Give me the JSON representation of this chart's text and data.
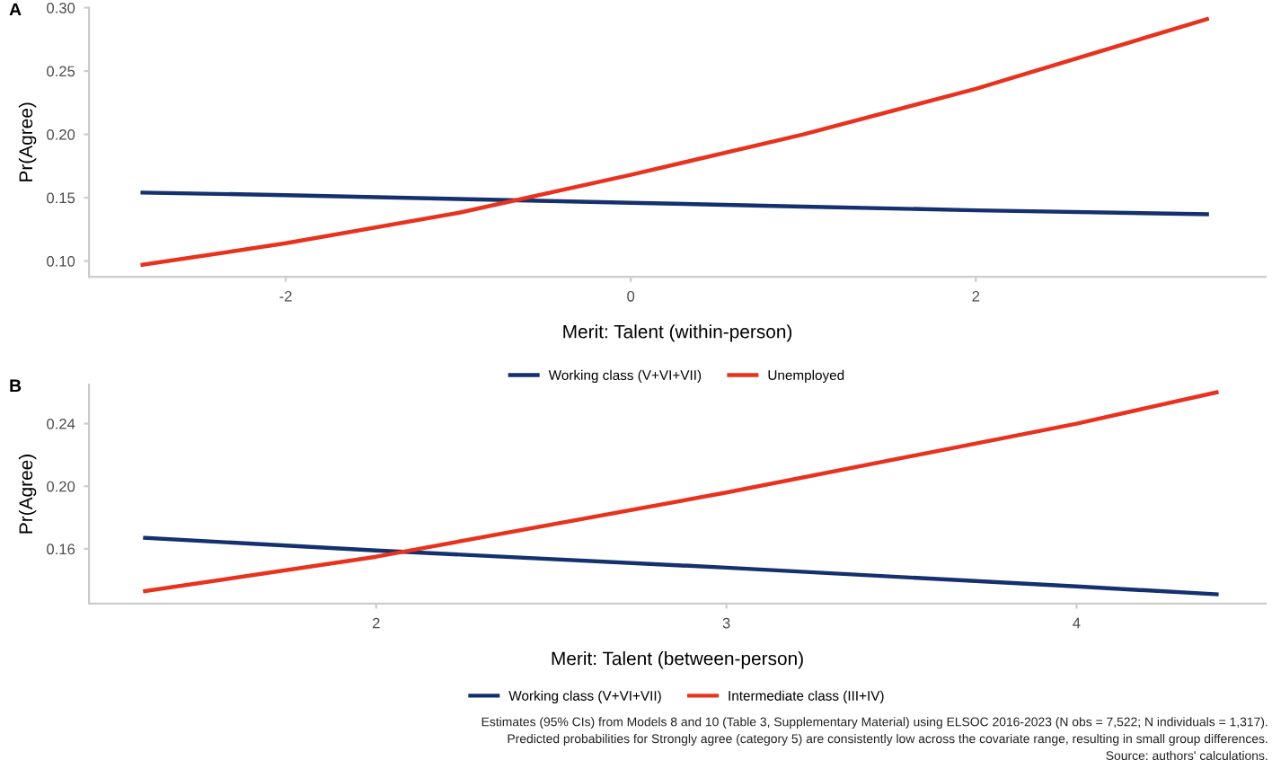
{
  "chart_data": [
    {
      "type": "line",
      "title": "A",
      "xlabel": "Merit: Talent (within-person)",
      "ylabel": "Pr(Agree)",
      "xlim": [
        -3.14,
        3.68
      ],
      "ylim": [
        0.0875,
        0.3
      ],
      "xticks": [
        {
          "value": -2,
          "label": "-2"
        },
        0,
        2
      ],
      "yticks": [
        {
          "value": 0.1,
          "label": "0.10"
        },
        0.15,
        {
          "value": 0.2,
          "label": "0.20"
        },
        0.25,
        {
          "value": 0.3,
          "label": "0.30"
        }
      ],
      "grid": false,
      "legend": "bottom",
      "line_style": "solid",
      "marker": "none",
      "series": [
        {
          "name": "Working class (V+VI+VII)",
          "color": "#14306e",
          "x": [
            -2.83,
            -2,
            -1,
            0,
            1,
            2,
            3.34
          ],
          "values": [
            0.154,
            0.152,
            0.149,
            0.146,
            0.143,
            0.14,
            0.137
          ]
        },
        {
          "name": "Unemployed",
          "color": "#e8321e",
          "x": [
            -2.83,
            -2,
            -1,
            0,
            1,
            2,
            3.34
          ],
          "values": [
            0.097,
            0.114,
            0.138,
            0.168,
            0.2,
            0.236,
            0.291
          ]
        }
      ]
    },
    {
      "type": "line",
      "title": "B",
      "xlabel": "Merit: Talent (between-person)",
      "ylabel": "Pr(Agree)",
      "xlim": [
        1.18,
        4.54
      ],
      "ylim": [
        0.125,
        0.265
      ],
      "xticks": [
        2,
        3,
        4
      ],
      "yticks": [
        0.16,
        {
          "value": 0.2,
          "label": "0.20"
        },
        0.24
      ],
      "grid": false,
      "legend": "bottom",
      "line_style": "solid",
      "marker": "none",
      "series": [
        {
          "name": "Working class (V+VI+VII)",
          "color": "#14306e",
          "x": [
            1.34,
            2,
            3,
            4,
            4.4
          ],
          "values": [
            0.167,
            0.159,
            0.148,
            0.136,
            0.131
          ]
        },
        {
          "name": "Intermediate class (III+IV)",
          "color": "#e8321e",
          "x": [
            1.34,
            2,
            3,
            4,
            4.4
          ],
          "values": [
            0.133,
            0.155,
            0.196,
            0.24,
            0.26
          ]
        }
      ],
      "annotations": [
        "Estimates (95% CIs) from Models 8 and 10 (Table 3, Supplementary Material) using ELSOC 2016-2023 (N obs = 7,522; N individuals = 1,317).",
        "Predicted probabilities for Strongly agree (category 5) are consistently low across the covariate range, resulting in small group differences.",
        "Source: authors' calculations."
      ]
    }
  ]
}
